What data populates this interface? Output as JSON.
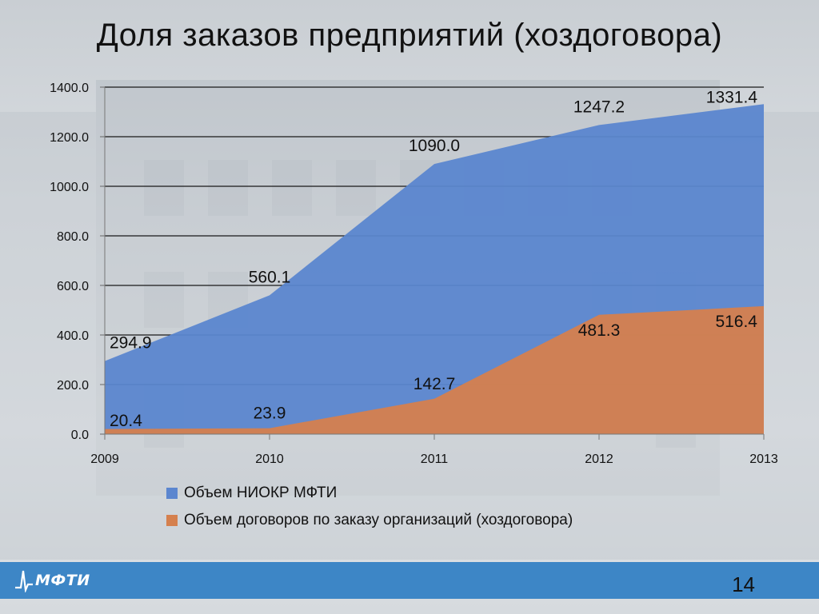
{
  "slide": {
    "title": "Доля заказов предприятий (хоздоговора)",
    "page_number": "14",
    "logo_text": "МФТИ"
  },
  "chart_data": {
    "type": "area",
    "categories": [
      "2009",
      "2010",
      "2011",
      "2012",
      "2013"
    ],
    "series": [
      {
        "name": "Объем НИОКР МФТИ",
        "color": "#5b86cf",
        "values": [
          294.9,
          560.1,
          1090.0,
          1247.2,
          1331.4
        ],
        "labels": [
          "294.9",
          "560.1",
          "1090.0",
          "1247.2",
          "1331.4"
        ]
      },
      {
        "name": "Объем договоров по заказу организаций (хоздоговора)",
        "color": "#d5804e",
        "values": [
          20.4,
          23.9,
          142.7,
          481.3,
          516.4
        ],
        "labels": [
          "20.4",
          "23.9",
          "142.7",
          "481.3",
          "516.4"
        ]
      }
    ],
    "ylim": [
      0,
      1400
    ],
    "yticks": [
      "0.0",
      "200.0",
      "400.0",
      "600.0",
      "800.0",
      "1000.0",
      "1200.0",
      "1400.0"
    ],
    "grid": true,
    "legend_position": "bottom"
  }
}
